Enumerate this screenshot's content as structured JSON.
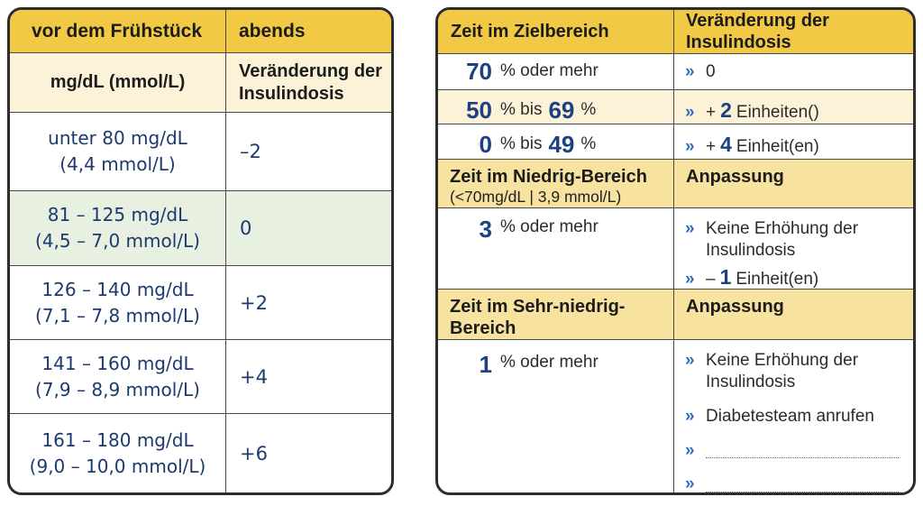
{
  "colors": {
    "header_yellow": "#f1c944",
    "section_yellow": "#f7e2a0",
    "cream_row": "#fbf2d8",
    "green_highlight_row": "#e7f0e1",
    "navy_text": "#1d3a6e",
    "number_blue": "#1d4080",
    "chevron_blue": "#2f6fbe",
    "border_dark": "#2d2d2d"
  },
  "chevron": "»",
  "left_table": {
    "header": {
      "col1": "vor dem Frühstück",
      "col2": "abends"
    },
    "subheader": {
      "col1": "mg/dL (mmol/L)",
      "col2": "Veränderung der Insulindosis"
    },
    "rows": [
      {
        "line1": "unter 80 mg/dL",
        "line2": "(4,4 mmol/L)",
        "value": "–2"
      },
      {
        "line1": "81 – 125 mg/dL",
        "line2": "(4,5 – 7,0 mmol/L)",
        "value": "0"
      },
      {
        "line1": "126 – 140 mg/dL",
        "line2": "(7,1 – 7,8 mmol/L)",
        "value": "+2"
      },
      {
        "line1": "141 – 160 mg/dL",
        "line2": "(7,9 – 8,9 mmol/L)",
        "value": "+4"
      },
      {
        "line1": "161 – 180 mg/dL",
        "line2": "(9,0 – 10,0 mmol/L)",
        "value": "+6"
      }
    ]
  },
  "right_table": {
    "header": {
      "col1": "Zeit im Zielbereich",
      "col2": "Veränderung der Insulindosis"
    },
    "tir_rows": {
      "r1": {
        "num": "70",
        "text": "% oder mehr",
        "action_num": "0"
      },
      "r2": {
        "num": "50",
        "mid": "% bis",
        "num2": "69",
        "tail": "%",
        "action_plus": "+",
        "action_num": "2",
        "action_unit": "Einheiten()"
      },
      "r3": {
        "num": "0",
        "mid": "% bis",
        "num2": "49",
        "tail": "%",
        "action_plus": "+",
        "action_num": "4",
        "action_unit": "Einheit(en)"
      }
    },
    "low_section": {
      "title": "Zeit im Niedrig-Bereich",
      "subtitle": "(<70mg/dL | 3,9 mmol/L)",
      "action_title": "Anpassung"
    },
    "low_row": {
      "num": "3",
      "text": "% oder mehr",
      "action_line1": "Keine Erhöhung der Insulindosis",
      "action_minus": "–",
      "action_num": "1",
      "action_unit": "Einheit(en)"
    },
    "very_low_section": {
      "title": "Zeit im Sehr-niedrig-Bereich",
      "action_title": "Anpassung"
    },
    "very_low_row": {
      "num": "1",
      "text": "% oder mehr",
      "action_line1": "Keine Erhöhung der Insulindosis",
      "action_line2": "Diabetesteam anrufen"
    }
  }
}
